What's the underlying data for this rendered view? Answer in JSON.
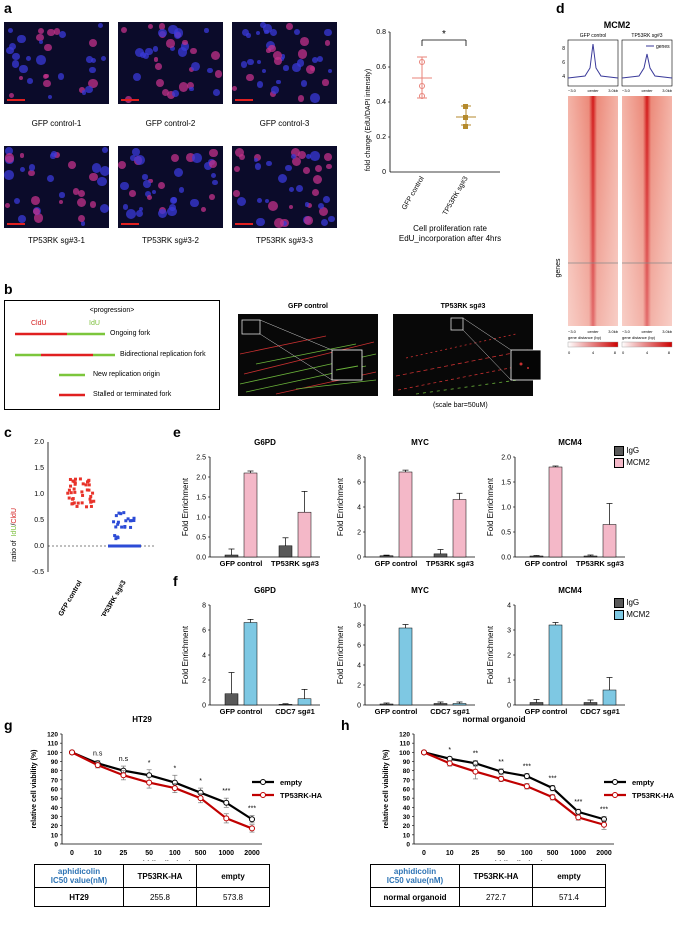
{
  "panels": {
    "a": "a",
    "b": "b",
    "c": "c",
    "d": "d",
    "e": "e",
    "f": "f",
    "g": "g",
    "h": "h"
  },
  "a": {
    "images_top": [
      "GFP control-1",
      "GFP control-2",
      "GFP control-3"
    ],
    "images_bottom": [
      "TP53RK sg#3-1",
      "TP53RK sg#3-2",
      "TP53RK sg#3-3"
    ],
    "chart_ylabel": "fold change (EdU/DAPI intensity)",
    "chart_yticks": [
      "0",
      "0.2",
      "0.4",
      "0.6",
      "0.8"
    ],
    "chart_xticks": [
      "GFP control",
      "TP53RK sg#3"
    ],
    "significance": "*",
    "caption_line1": "Cell proliferation rate",
    "caption_line2": "EdU_incorporation after 4hrs"
  },
  "b": {
    "legend_title": "<progression>",
    "cldu": "CldU",
    "idu": "IdU",
    "items": [
      "Ongoing fork",
      "Bidirectional replication fork",
      "New replication origin",
      "Stalled or terminated fork"
    ],
    "img_titles": [
      "GFP control",
      "TP53RK sg#3"
    ],
    "scale_note": "(scale bar=50uM)"
  },
  "c": {
    "ylabel_prefix": "ratio of",
    "ylabel_idu": "IdU",
    "ylabel_slash": "/",
    "ylabel_cldu": "CldU",
    "yticks": [
      "-0.5",
      "0.0",
      "0.5",
      "1.0",
      "1.5",
      "2.0"
    ],
    "xticks": [
      "GFP control",
      "TP53RK sg#3"
    ]
  },
  "d": {
    "title": "MCM2",
    "heat_titles": [
      "GFP control",
      "TP53RK sg#3"
    ],
    "legend": "genes",
    "profile_yticks": [
      "8",
      "6",
      "4"
    ],
    "axis_left": "-3.0",
    "axis_center": "center",
    "axis_right": "3.0kb",
    "xlabel": "gene distance (bp)",
    "ylabel": "genes",
    "scale_ticks": [
      "0",
      "4",
      "8"
    ]
  },
  "chart_data": [
    {
      "type": "bar",
      "panel": "e",
      "title": "G6PD",
      "categories": [
        "GFP control",
        "TP53RK sg#3"
      ],
      "series": [
        {
          "name": "IgG",
          "values": [
            0.05,
            0.28
          ],
          "err": [
            0.15,
            0.2
          ],
          "color": "#595959"
        },
        {
          "name": "MCM2",
          "values": [
            2.1,
            1.12
          ],
          "err": [
            0.05,
            0.52
          ],
          "color": "#f4b8c8"
        }
      ],
      "ylabel": "Fold Enrichment",
      "ylim": [
        0,
        2.5
      ],
      "yticks": [
        "0.0",
        "0.5",
        "1.0",
        "1.5",
        "2.0",
        "2.5"
      ]
    },
    {
      "type": "bar",
      "panel": "e",
      "title": "MYC",
      "categories": [
        "GFP control",
        "TP53RK sg#3"
      ],
      "series": [
        {
          "name": "IgG",
          "values": [
            0.1,
            0.25
          ],
          "err": [
            0.05,
            0.35
          ],
          "color": "#595959"
        },
        {
          "name": "MCM2",
          "values": [
            6.8,
            4.6
          ],
          "err": [
            0.15,
            0.5
          ],
          "color": "#f4b8c8"
        }
      ],
      "ylabel": "Fold Enrichment",
      "ylim": [
        0,
        8
      ],
      "yticks": [
        "0",
        "2",
        "4",
        "6",
        "8"
      ]
    },
    {
      "type": "bar",
      "panel": "e",
      "title": "MCM4",
      "categories": [
        "GFP control",
        "TP53RK sg#3"
      ],
      "series": [
        {
          "name": "IgG",
          "values": [
            0.02,
            0.02
          ],
          "err": [
            0.01,
            0.02
          ],
          "color": "#595959"
        },
        {
          "name": "MCM2",
          "values": [
            1.8,
            0.65
          ],
          "err": [
            0.02,
            0.42
          ],
          "color": "#f4b8c8"
        }
      ],
      "ylabel": "Fold Enrichment",
      "ylim": [
        0,
        2
      ],
      "yticks": [
        "0.0",
        "0.5",
        "1.0",
        "1.5",
        "2.0"
      ]
    },
    {
      "type": "bar",
      "panel": "f",
      "title": "G6PD",
      "categories": [
        "GFP control",
        "CDC7 sg#1"
      ],
      "series": [
        {
          "name": "IgG",
          "values": [
            0.9,
            0.05
          ],
          "err": [
            1.7,
            0.05
          ],
          "color": "#595959"
        },
        {
          "name": "MCM2",
          "values": [
            6.6,
            0.5
          ],
          "err": [
            0.25,
            0.75
          ],
          "color": "#7ec8e3"
        }
      ],
      "ylabel": "Fold Enrichment",
      "ylim": [
        0,
        8
      ],
      "yticks": [
        "0",
        "2",
        "4",
        "6",
        "8"
      ]
    },
    {
      "type": "bar",
      "panel": "f",
      "title": "MYC",
      "categories": [
        "GFP control",
        "CDC7 sg#1"
      ],
      "series": [
        {
          "name": "IgG",
          "values": [
            0.1,
            0.15
          ],
          "err": [
            0.1,
            0.15
          ],
          "color": "#595959"
        },
        {
          "name": "MCM2",
          "values": [
            7.7,
            0.15
          ],
          "err": [
            0.35,
            0.15
          ],
          "color": "#7ec8e3"
        }
      ],
      "ylabel": "Fold Enrichment",
      "ylim": [
        0,
        10
      ],
      "yticks": [
        "0",
        "2",
        "4",
        "6",
        "8",
        "10"
      ]
    },
    {
      "type": "bar",
      "panel": "f",
      "title": "MCM4",
      "categories": [
        "GFP control",
        "CDC7 sg#1"
      ],
      "series": [
        {
          "name": "IgG",
          "values": [
            0.1,
            0.1
          ],
          "err": [
            0.12,
            0.1
          ],
          "color": "#595959"
        },
        {
          "name": "MCM2",
          "values": [
            3.2,
            0.6
          ],
          "err": [
            0.1,
            0.5
          ],
          "color": "#7ec8e3"
        }
      ],
      "ylabel": "Fold Enrichment",
      "ylim": [
        0,
        4
      ],
      "yticks": [
        "0",
        "1",
        "2",
        "3",
        "4"
      ]
    },
    {
      "type": "line",
      "panel": "g",
      "title": "HT29",
      "categories": [
        "0",
        "10",
        "25",
        "50",
        "100",
        "500",
        "1000",
        "2000"
      ],
      "series": [
        {
          "name": "empty",
          "values": [
            100,
            88,
            80,
            75,
            67,
            56,
            45,
            27
          ],
          "err": [
            1,
            3,
            5,
            6,
            8,
            5,
            5,
            4
          ],
          "color": "#000000"
        },
        {
          "name": "TP53RK-HA",
          "values": [
            100,
            86,
            75,
            67,
            61,
            50,
            28,
            17
          ],
          "err": [
            1,
            3,
            5,
            6,
            5,
            5,
            5,
            4
          ],
          "color": "#c00000"
        }
      ],
      "significance": [
        "",
        "n.s",
        "n.s",
        "*",
        "*",
        "*",
        "***",
        "***"
      ],
      "xlabel": "Aphidicolin (nM)",
      "ylabel": "relative cell viability (%)",
      "ylim": [
        0,
        120
      ],
      "yticks": [
        "0",
        "10",
        "20",
        "30",
        "40",
        "50",
        "60",
        "70",
        "80",
        "90",
        "100",
        "110",
        "120"
      ]
    },
    {
      "type": "line",
      "panel": "h",
      "title": "normal organoid",
      "categories": [
        "0",
        "10",
        "25",
        "50",
        "100",
        "500",
        "1000",
        "2000"
      ],
      "series": [
        {
          "name": "empty",
          "values": [
            100,
            93,
            88,
            79,
            74,
            61,
            35,
            27
          ],
          "err": [
            1,
            2,
            3,
            3,
            3,
            3,
            3,
            3
          ],
          "color": "#000000"
        },
        {
          "name": "TP53RK-HA",
          "values": [
            100,
            88,
            79,
            71,
            63,
            51,
            29,
            21
          ],
          "err": [
            1,
            3,
            8,
            3,
            3,
            3,
            3,
            5
          ],
          "color": "#c00000"
        }
      ],
      "significance": [
        "",
        "*",
        "**",
        "**",
        "***",
        "***",
        "***",
        "***"
      ],
      "xlabel": "Aphidicolin (nM)",
      "ylabel": "relative cell viability (%)",
      "ylim": [
        0,
        120
      ],
      "yticks": [
        "0",
        "10",
        "20",
        "30",
        "40",
        "50",
        "60",
        "70",
        "80",
        "90",
        "100",
        "110",
        "120"
      ]
    }
  ],
  "legend_e": [
    "IgG",
    "MCM2"
  ],
  "legend_f": [
    "IgG",
    "MCM2"
  ],
  "table_g": {
    "h1": "aphidicolin",
    "h2": "IC50 value(nM)",
    "c1": "TP53RK-HA",
    "c2": "empty",
    "row": "HT29",
    "v1": "255.8",
    "v2": "573.8"
  },
  "table_h": {
    "h1": "aphidicolin",
    "h2": "IC50 value(nM)",
    "c1": "TP53RK-HA",
    "c2": "empty",
    "row": "normal organoid",
    "v1": "272.7",
    "v2": "571.4"
  }
}
